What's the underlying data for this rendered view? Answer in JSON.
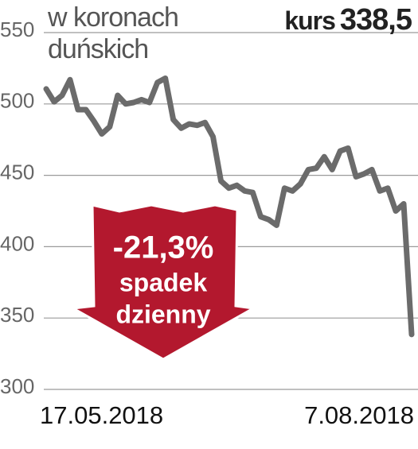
{
  "chart_data": {
    "type": "line",
    "subtitle": "w koronach duńskich",
    "current": {
      "label": "kurs",
      "value": 338.5,
      "value_label": "338,5"
    },
    "annotation": {
      "change": "-21,3%",
      "lines": [
        "spadek",
        "dzienny"
      ]
    },
    "categories": [
      "17.05.2018",
      null,
      null,
      null,
      null,
      null,
      null,
      null,
      null,
      null,
      null,
      null,
      null,
      null,
      null,
      null,
      null,
      null,
      null,
      null,
      null,
      null,
      null,
      null,
      null,
      null,
      null,
      null,
      null,
      null,
      null,
      null,
      null,
      null,
      null,
      null,
      null,
      null,
      null,
      null,
      null,
      null,
      null,
      null,
      null,
      null,
      "7.08.2018"
    ],
    "series": [
      {
        "name": "kurs",
        "color": "#6b6b6b",
        "values": [
          510.5,
          501.5,
          506,
          517,
          496,
          496,
          488,
          479,
          484,
          506,
          500,
          501,
          503,
          501,
          515,
          518,
          489,
          483,
          486,
          485,
          487,
          477,
          446,
          441,
          443,
          439,
          438,
          421,
          419,
          415,
          441,
          439,
          444,
          454,
          455,
          463,
          454,
          467,
          469,
          449,
          451,
          454,
          439,
          441,
          425,
          430,
          338.5
        ]
      }
    ],
    "ylim": [
      300,
      550
    ],
    "yticks": [
      300,
      350,
      400,
      450,
      500,
      550
    ],
    "grid": true
  }
}
